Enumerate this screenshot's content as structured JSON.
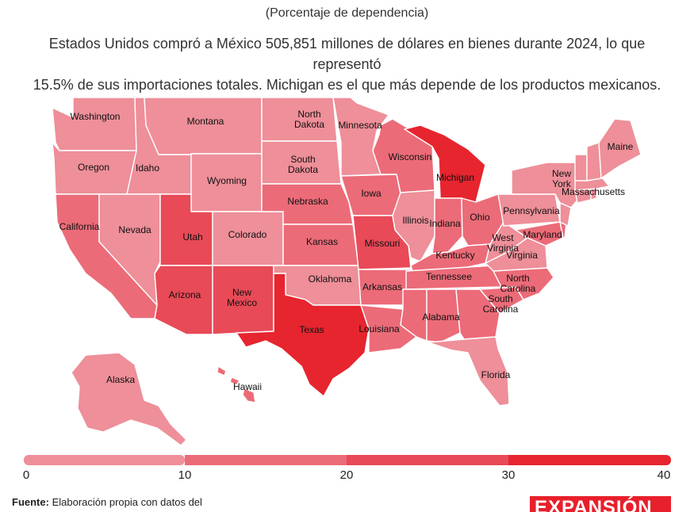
{
  "header": {
    "subtitle": "(Porcentaje de dependencia)",
    "description_line1": "Estados Unidos compró a México 505,851 millones de dólares en bienes durante 2024, lo que representó",
    "description_line2": "15.5% de sus importaciones totales. Michigan es el que más depende de los productos mexicanos."
  },
  "legend": {
    "ticks": [
      "0",
      "10",
      "20",
      "30",
      "40"
    ],
    "colors": [
      "#ee8f99",
      "#ec6b78",
      "#e84a57",
      "#e6252f"
    ]
  },
  "states": [
    {
      "name": "Washington",
      "label": "Washington",
      "level": 0
    },
    {
      "name": "Oregon",
      "label": "Oregon",
      "level": 0
    },
    {
      "name": "California",
      "label": "California",
      "level": 1
    },
    {
      "name": "Idaho",
      "label": "Idaho",
      "level": 0
    },
    {
      "name": "Nevada",
      "label": "Nevada",
      "level": 0
    },
    {
      "name": "Montana",
      "label": "Montana",
      "level": 0
    },
    {
      "name": "Wyoming",
      "label": "Wyoming",
      "level": 0
    },
    {
      "name": "Utah",
      "label": "Utah",
      "level": 2
    },
    {
      "name": "Colorado",
      "label": "Colorado",
      "level": 0
    },
    {
      "name": "Arizona",
      "label": "Arizona",
      "level": 2
    },
    {
      "name": "New Mexico",
      "label": "New Mexico",
      "level": 2
    },
    {
      "name": "North Dakota",
      "label": "North Dakota",
      "level": 0
    },
    {
      "name": "South Dakota",
      "label": "South Dakota",
      "level": 0
    },
    {
      "name": "Nebraska",
      "label": "Nebraska",
      "level": 1
    },
    {
      "name": "Kansas",
      "label": "Kansas",
      "level": 1
    },
    {
      "name": "Oklahoma",
      "label": "Oklahoma",
      "level": 0
    },
    {
      "name": "Texas",
      "label": "Texas",
      "level": 3
    },
    {
      "name": "Minnesota",
      "label": "Minnesota",
      "level": 0
    },
    {
      "name": "Iowa",
      "label": "Iowa",
      "level": 1
    },
    {
      "name": "Missouri",
      "label": "Missouri",
      "level": 2
    },
    {
      "name": "Arkansas",
      "label": "Arkansas",
      "level": 1
    },
    {
      "name": "Louisiana",
      "label": "Louisiana",
      "level": 1
    },
    {
      "name": "Wisconsin",
      "label": "Wisconsin",
      "level": 1
    },
    {
      "name": "Illinois",
      "label": "Illinois",
      "level": 0
    },
    {
      "name": "Michigan",
      "label": "Michigan",
      "level": 3
    },
    {
      "name": "Indiana",
      "label": "Indiana",
      "level": 1
    },
    {
      "name": "Ohio",
      "label": "Ohio",
      "level": 1
    },
    {
      "name": "Kentucky",
      "label": "Kentucky",
      "level": 1
    },
    {
      "name": "Tennessee",
      "label": "Tennessee",
      "level": 1
    },
    {
      "name": "Mississippi",
      "label": "",
      "level": 1
    },
    {
      "name": "Alabama",
      "label": "Alabama",
      "level": 1
    },
    {
      "name": "Georgia",
      "label": "",
      "level": 1
    },
    {
      "name": "Florida",
      "label": "Florida",
      "level": 0
    },
    {
      "name": "South Carolina",
      "label": "South Carolina",
      "level": 1
    },
    {
      "name": "North Carolina",
      "label": "North Carolina",
      "level": 1
    },
    {
      "name": "Virginia",
      "label": "Virginia",
      "level": 0
    },
    {
      "name": "West Virginia",
      "label": "West Virginia",
      "level": 0
    },
    {
      "name": "Pennsylvania",
      "label": "Pennsylvania",
      "level": 0
    },
    {
      "name": "New York",
      "label": "New York",
      "level": 0
    },
    {
      "name": "Maryland",
      "label": "Maryland",
      "level": 1
    },
    {
      "name": "Delaware",
      "label": "",
      "level": 1
    },
    {
      "name": "New Jersey",
      "label": "",
      "level": 0
    },
    {
      "name": "Connecticut",
      "label": "",
      "level": 0
    },
    {
      "name": "Rhode Island",
      "label": "",
      "level": 0
    },
    {
      "name": "Massachusetts",
      "label": "Massachusetts",
      "level": 0
    },
    {
      "name": "Vermont",
      "label": "",
      "level": 0
    },
    {
      "name": "New Hampshire",
      "label": "",
      "level": 0
    },
    {
      "name": "Maine",
      "label": "Maine",
      "level": 0
    },
    {
      "name": "Alaska",
      "label": "Alaska",
      "level": 0
    },
    {
      "name": "Hawaii",
      "label": "Hawaii",
      "level": 1
    }
  ],
  "footer": {
    "source_label": "Fuente:",
    "source_text": "Elaboración propia con datos del",
    "logo_text": "EXPANSIÓN"
  }
}
